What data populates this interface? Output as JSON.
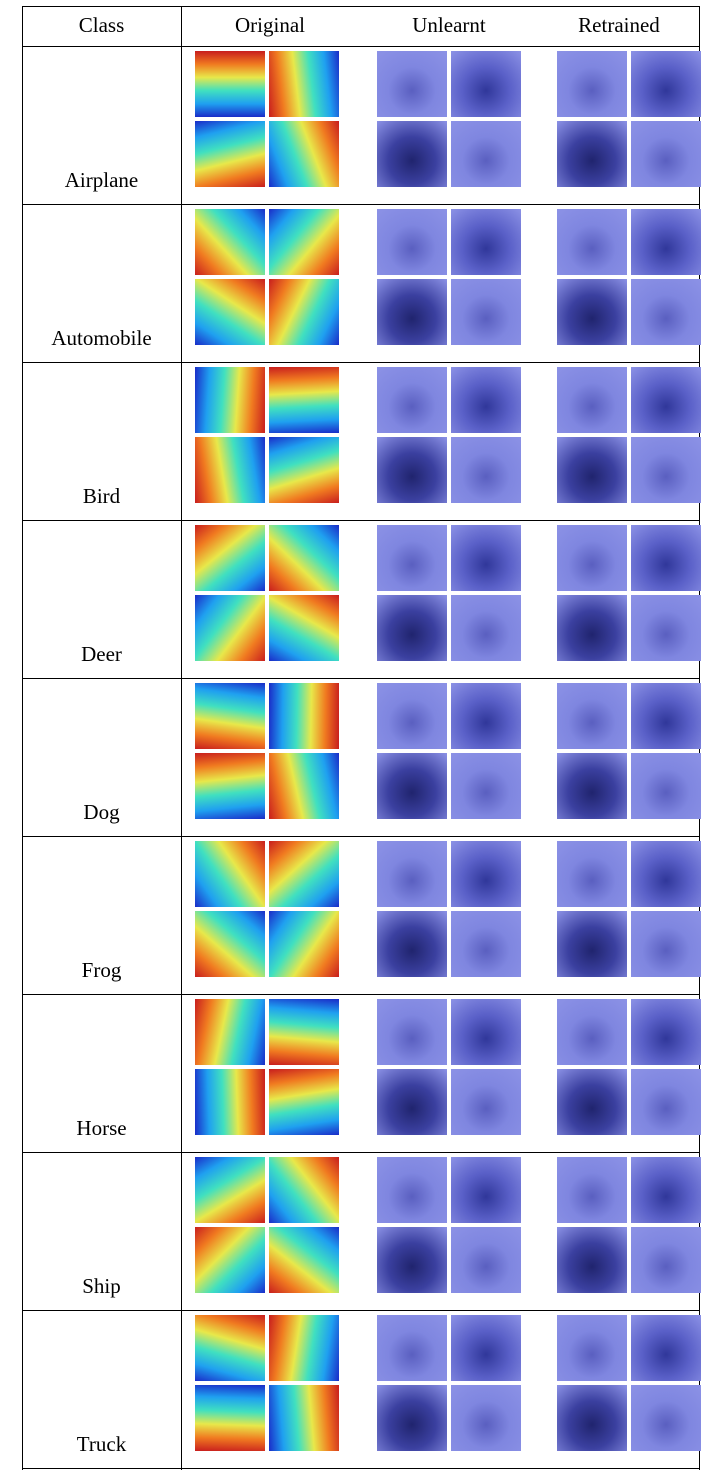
{
  "table": {
    "header": [
      "Class",
      "Original",
      "Unlearnt",
      "Retrained"
    ],
    "classes": [
      "Airplane",
      "Automobile",
      "Bird",
      "Deer",
      "Dog",
      "Frog",
      "Horse",
      "Ship",
      "Truck"
    ]
  }
}
